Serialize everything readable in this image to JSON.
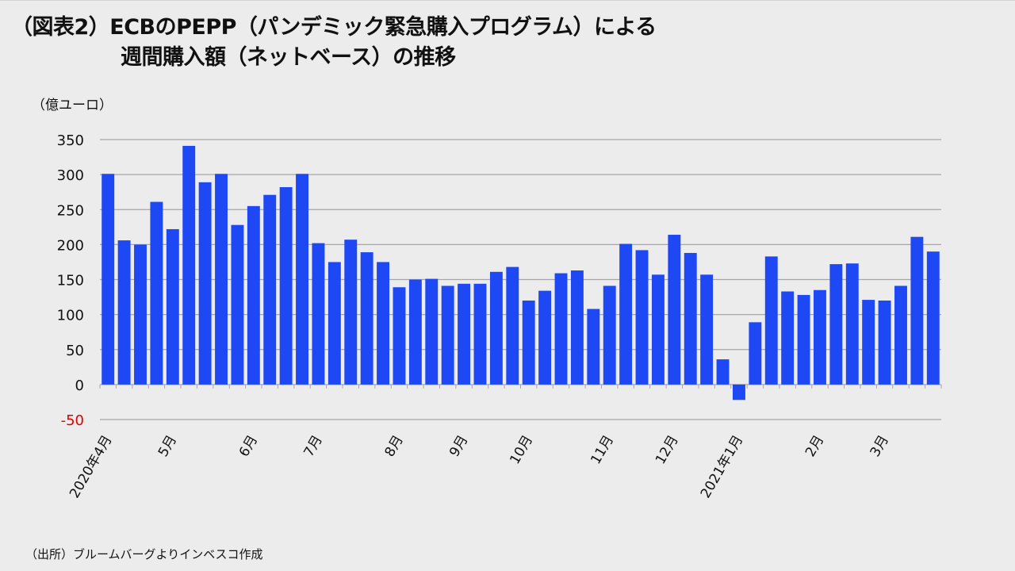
{
  "title": {
    "line1": "（図表2）ECBのPEPP（パンデミック緊急購入プログラム）による",
    "line2": "週間購入額（ネットベース）の推移"
  },
  "unit_label": "（億ユーロ）",
  "source": "（出所）ブルームバーグよりインベスコ作成",
  "colors": {
    "bar": "#1f48f5",
    "grid": "#a6a6a6",
    "negative_label": "#e00000"
  },
  "chart_data": {
    "type": "bar",
    "title": "ECBのPEPP（パンデミック緊急購入プログラム）による週間購入額（ネットベース）の推移",
    "ylabel": "億ユーロ",
    "ylim": [
      -50,
      350
    ],
    "yticks": [
      350,
      300,
      250,
      200,
      150,
      100,
      50,
      0,
      -50
    ],
    "grid": true,
    "values": [
      301,
      206,
      200,
      261,
      222,
      341,
      289,
      301,
      228,
      255,
      271,
      282,
      301,
      202,
      175,
      207,
      189,
      175,
      139,
      150,
      151,
      141,
      144,
      144,
      161,
      168,
      120,
      134,
      159,
      163,
      108,
      141,
      201,
      192,
      157,
      214,
      188,
      157,
      36,
      -22,
      89,
      183,
      133,
      128,
      135,
      172,
      173,
      121,
      120,
      141,
      211,
      190
    ],
    "month_labels": [
      {
        "index": 0,
        "label": "2020年4月"
      },
      {
        "index": 4,
        "label": "5月"
      },
      {
        "index": 9,
        "label": "6月"
      },
      {
        "index": 13,
        "label": "7月"
      },
      {
        "index": 18,
        "label": "8月"
      },
      {
        "index": 22,
        "label": "9月"
      },
      {
        "index": 26,
        "label": "10月"
      },
      {
        "index": 31,
        "label": "11月"
      },
      {
        "index": 35,
        "label": "12月"
      },
      {
        "index": 39,
        "label": "2021年1月"
      },
      {
        "index": 44,
        "label": "2月"
      },
      {
        "index": 48,
        "label": "3月"
      }
    ]
  }
}
